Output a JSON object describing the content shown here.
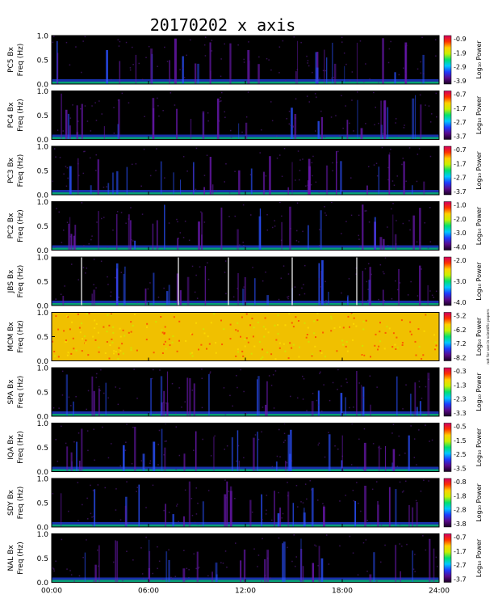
{
  "title": "20170202 x axis",
  "chart_data": {
    "type": "heatmap",
    "title": "20170202 x axis",
    "x_tick_labels": [
      "00:00",
      "06:00",
      "12:00",
      "18:00",
      "24:00"
    ],
    "x_ticks_hours": [
      0,
      6,
      12,
      18,
      24
    ],
    "xlim_hours": [
      0,
      24
    ],
    "ylim_hz": [
      0,
      1.0
    ],
    "y_tick_labels": [
      "0.0",
      "0.5",
      "1.0"
    ],
    "y_ticks_hz": [
      0,
      0.5,
      1.0
    ],
    "colorbar_label": "Log₁₀ Power",
    "colormap": [
      "#1a0022",
      "#5a0a8c",
      "#1f3cff",
      "#00c8ff",
      "#00e070",
      "#c8f000",
      "#ffd000",
      "#ff3000",
      "#d00060"
    ],
    "panels": [
      {
        "station": "PC5",
        "ylabel_station": "PC5 Bx",
        "ylabel_unit": "Freq (Hz)",
        "colorbar_ticks": [
          "-0.9",
          "-1.9",
          "-2.9",
          "-3.9"
        ],
        "note": "",
        "dropouts_hours": []
      },
      {
        "station": "PC4",
        "ylabel_station": "PC4 Bx",
        "ylabel_unit": "Freq (Hz)",
        "colorbar_ticks": [
          "-0.7",
          "-1.7",
          "-2.7",
          "-3.7"
        ],
        "note": "",
        "dropouts_hours": []
      },
      {
        "station": "PC3",
        "ylabel_station": "PC3 Bx",
        "ylabel_unit": "Freq (Hz)",
        "colorbar_ticks": [
          "-0.7",
          "-1.7",
          "-2.7",
          "-3.7"
        ],
        "note": "",
        "dropouts_hours": []
      },
      {
        "station": "PC2",
        "ylabel_station": "PC2 Bx",
        "ylabel_unit": "Freq (Hz)",
        "colorbar_ticks": [
          "-1.0",
          "-2.0",
          "-3.0",
          "-4.0"
        ],
        "note": "",
        "dropouts_hours": []
      },
      {
        "station": "JBS",
        "ylabel_station": "JBS Bx",
        "ylabel_unit": "Freq (Hz)",
        "colorbar_ticks": [
          "-2.0",
          "-3.0",
          "-4.0"
        ],
        "note": "",
        "dropouts_hours": [
          1.85,
          7.85,
          10.95,
          14.9,
          18.9
        ]
      },
      {
        "station": "MCM",
        "ylabel_station": "MCM Bx",
        "ylabel_unit": "Freq (Hz)",
        "colorbar_ticks": [
          "-5.2",
          "-6.2",
          "-7.2",
          "-8.2"
        ],
        "note": "not for use in scientific papers",
        "dropouts_hours": []
      },
      {
        "station": "SPA",
        "ylabel_station": "SPA Bx",
        "ylabel_unit": "Freq (Hz)",
        "colorbar_ticks": [
          "-0.3",
          "-1.3",
          "-2.3",
          "-3.3"
        ],
        "note": "",
        "dropouts_hours": []
      },
      {
        "station": "IQA",
        "ylabel_station": "IQA Bx",
        "ylabel_unit": "Freq (Hz)",
        "colorbar_ticks": [
          "-0.5",
          "-1.5",
          "-2.5",
          "-3.5"
        ],
        "note": "",
        "dropouts_hours": []
      },
      {
        "station": "SDY",
        "ylabel_station": "SDY Bx",
        "ylabel_unit": "Freq (Hz)",
        "colorbar_ticks": [
          "-0.8",
          "-1.8",
          "-2.8",
          "-3.8"
        ],
        "note": "",
        "dropouts_hours": []
      },
      {
        "station": "NAL",
        "ylabel_station": "NAL Bx",
        "ylabel_unit": "Freq (Hz)",
        "colorbar_ticks": [
          "-0.7",
          "-1.7",
          "-2.7",
          "-3.7"
        ],
        "note": "",
        "dropouts_hours": []
      }
    ]
  }
}
